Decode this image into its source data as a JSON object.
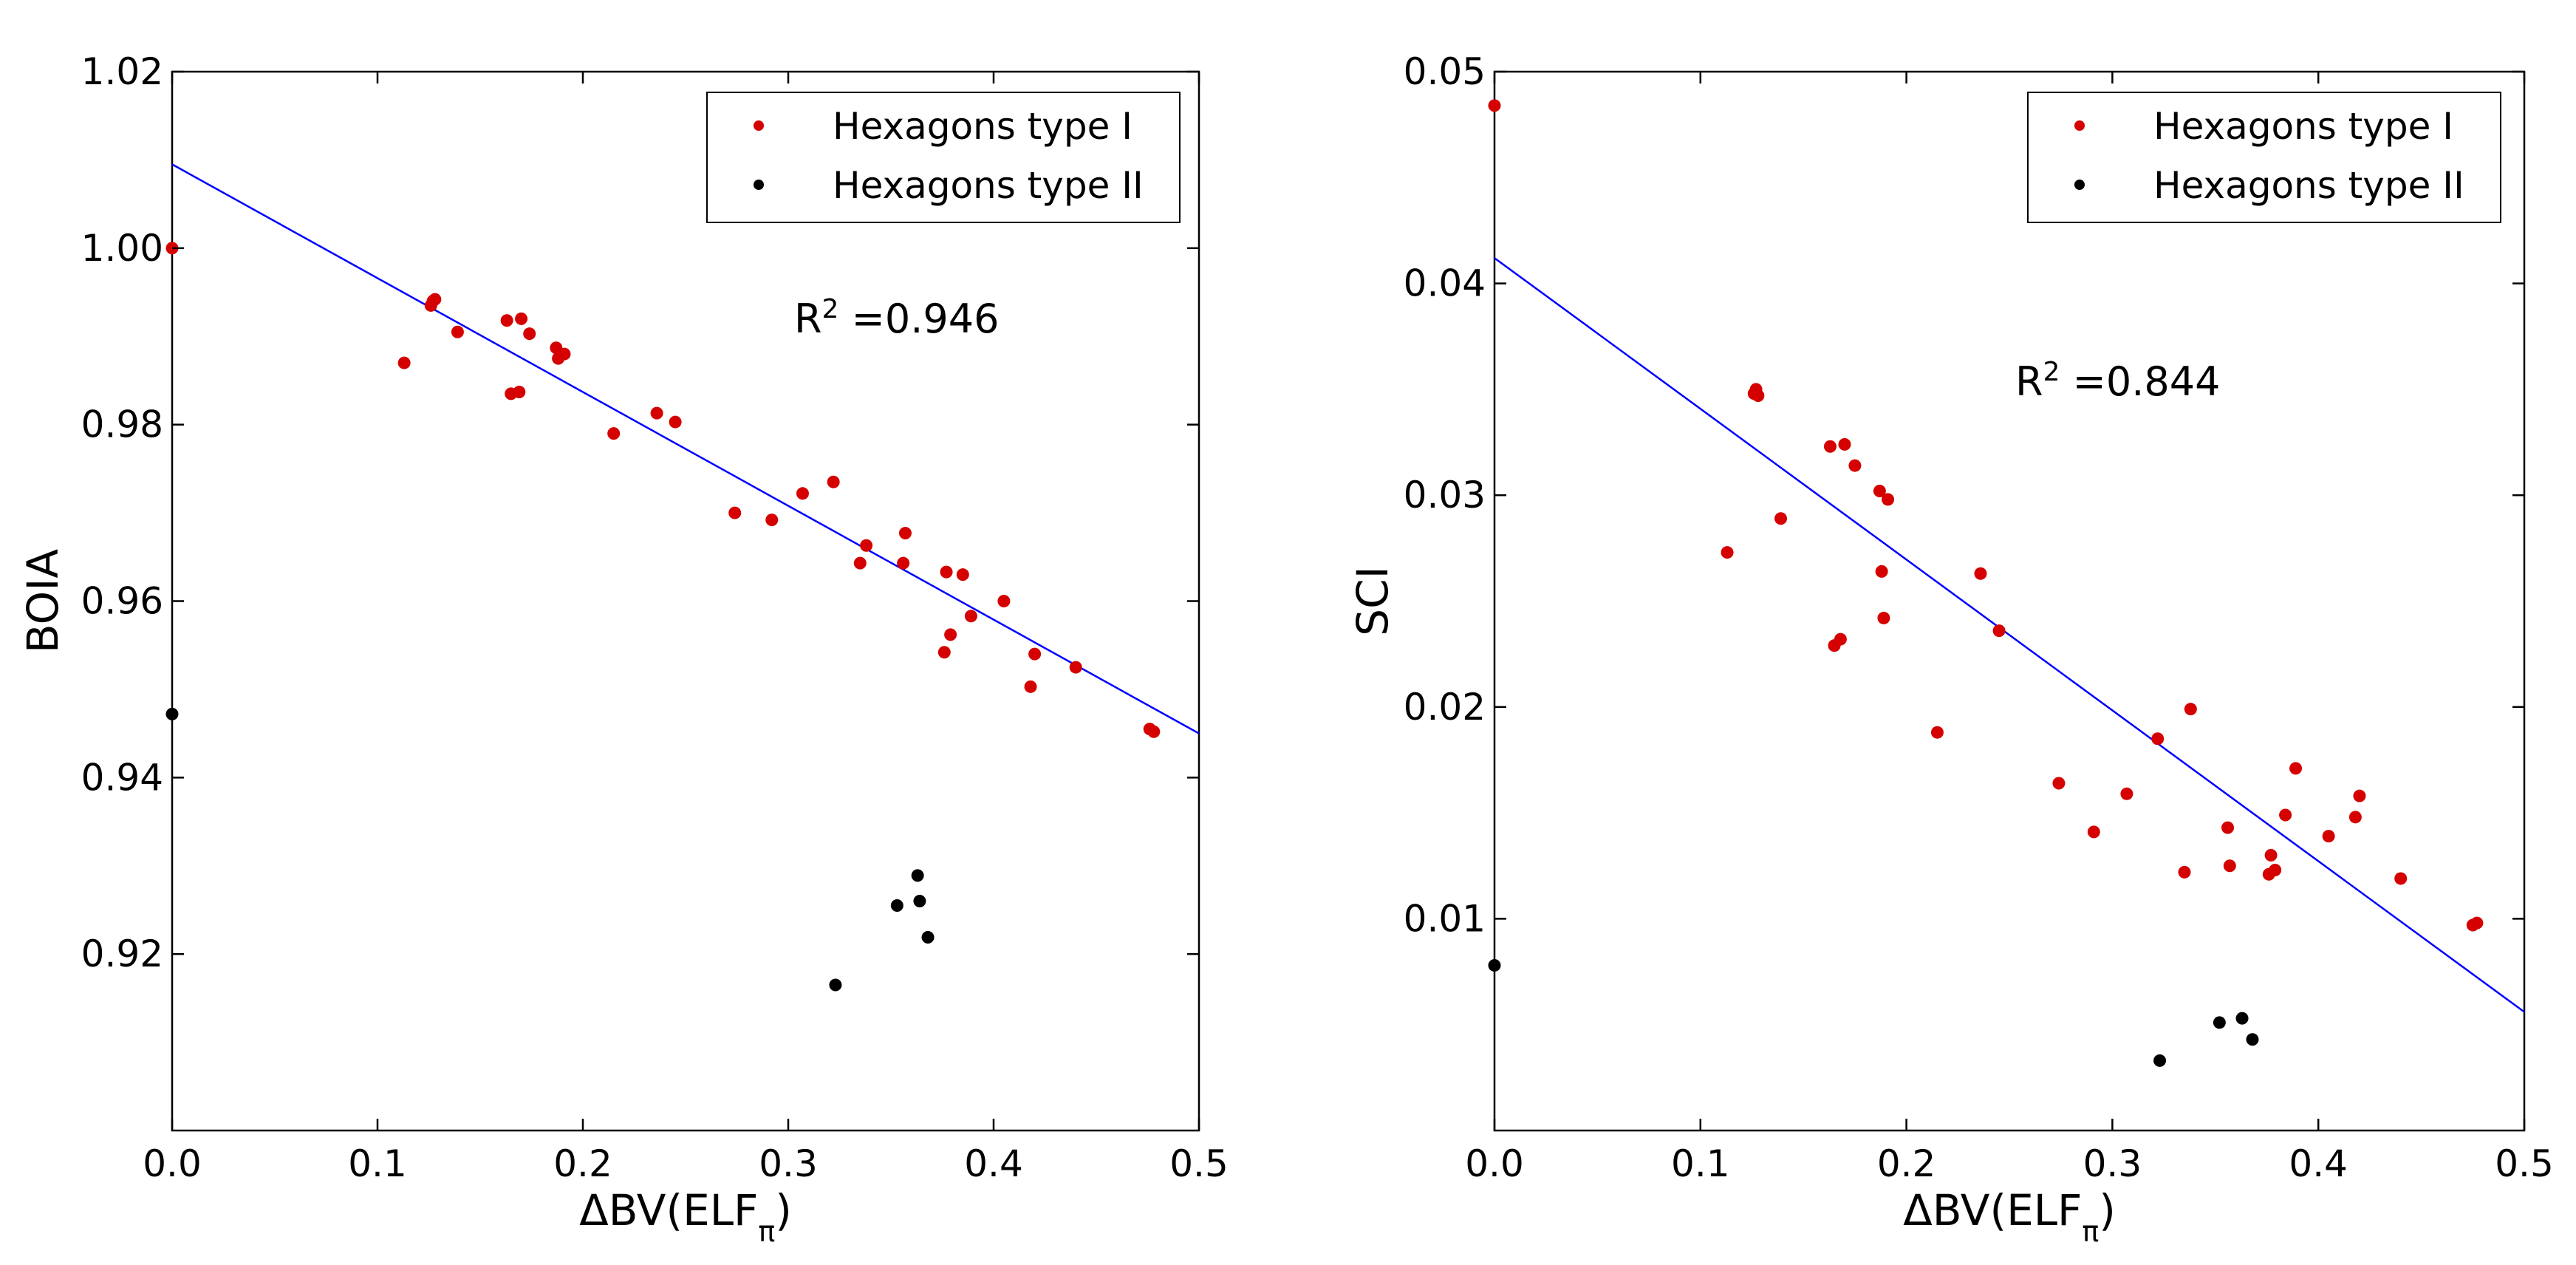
{
  "chart_data": [
    {
      "type": "scatter",
      "xlabel": "ΔBV(ELF",
      "xlabel_sub": "π",
      "xlabel_close": ")",
      "ylabel": "BOIA",
      "xlim": [
        0.0,
        0.5
      ],
      "ylim": [
        0.9,
        1.02
      ],
      "xticks": [
        0.0,
        0.1,
        0.2,
        0.3,
        0.4,
        0.5
      ],
      "xtick_labels": [
        "0.0",
        "0.1",
        "0.2",
        "0.3",
        "0.4",
        "0.5"
      ],
      "yticks": [
        0.92,
        0.94,
        0.96,
        0.98,
        1.0,
        1.02
      ],
      "ytick_labels": [
        "0.92",
        "0.94",
        "0.96",
        "0.98",
        "1.00",
        "1.02"
      ],
      "grid": false,
      "legend_position": "top-right",
      "annotation": {
        "prefix": "R",
        "sup": "2",
        "value": " =0.946"
      },
      "fit_line": {
        "intercept": 1.0095,
        "slope": -0.129,
        "color": "#0000ff"
      },
      "series": [
        {
          "name": "Hexagons type I",
          "color": "#d50000",
          "points": [
            [
              0.0,
              1.0
            ],
            [
              0.113,
              0.987
            ],
            [
              0.126,
              0.9935
            ],
            [
              0.127,
              0.994
            ],
            [
              0.128,
              0.9942
            ],
            [
              0.139,
              0.9905
            ],
            [
              0.163,
              0.9918
            ],
            [
              0.165,
              0.9835
            ],
            [
              0.169,
              0.9837
            ],
            [
              0.17,
              0.992
            ],
            [
              0.174,
              0.9903
            ],
            [
              0.187,
              0.9887
            ],
            [
              0.188,
              0.9875
            ],
            [
              0.191,
              0.988
            ],
            [
              0.215,
              0.979
            ],
            [
              0.236,
              0.9813
            ],
            [
              0.245,
              0.9803
            ],
            [
              0.274,
              0.97
            ],
            [
              0.292,
              0.9692
            ],
            [
              0.307,
              0.9722
            ],
            [
              0.322,
              0.9735
            ],
            [
              0.335,
              0.9643
            ],
            [
              0.338,
              0.9663
            ],
            [
              0.356,
              0.9643
            ],
            [
              0.357,
              0.9677
            ],
            [
              0.376,
              0.9542
            ],
            [
              0.377,
              0.9633
            ],
            [
              0.379,
              0.9562
            ],
            [
              0.385,
              0.963
            ],
            [
              0.389,
              0.9583
            ],
            [
              0.405,
              0.96
            ],
            [
              0.418,
              0.9503
            ],
            [
              0.42,
              0.954
            ],
            [
              0.44,
              0.9525
            ],
            [
              0.476,
              0.9455
            ],
            [
              0.478,
              0.9452
            ]
          ]
        },
        {
          "name": "Hexagons type II",
          "color": "#000000",
          "points": [
            [
              0.0,
              0.9472
            ],
            [
              0.323,
              0.9165
            ],
            [
              0.353,
              0.9255
            ],
            [
              0.363,
              0.9289
            ],
            [
              0.364,
              0.926
            ],
            [
              0.368,
              0.9219
            ]
          ]
        }
      ]
    },
    {
      "type": "scatter",
      "xlabel": "ΔBV(ELF",
      "xlabel_sub": "π",
      "xlabel_close": ")",
      "ylabel": "SCI",
      "xlim": [
        0.0,
        0.5
      ],
      "ylim": [
        0.0,
        0.05
      ],
      "xticks": [
        0.0,
        0.1,
        0.2,
        0.3,
        0.4,
        0.5
      ],
      "xtick_labels": [
        "0.0",
        "0.1",
        "0.2",
        "0.3",
        "0.4",
        "0.5"
      ],
      "yticks": [
        0.01,
        0.02,
        0.03,
        0.04,
        0.05
      ],
      "ytick_labels": [
        "0.01",
        "0.02",
        "0.03",
        "0.04",
        "0.05"
      ],
      "grid": false,
      "legend_position": "top-right",
      "annotation": {
        "prefix": "R",
        "sup": "2",
        "value": " =0.844"
      },
      "fit_line": {
        "intercept": 0.0412,
        "slope": -0.0712,
        "color": "#0000ff"
      },
      "series": [
        {
          "name": "Hexagons type I",
          "color": "#d50000",
          "points": [
            [
              0.0,
              0.0484
            ],
            [
              0.113,
              0.0273
            ],
            [
              0.126,
              0.0348
            ],
            [
              0.127,
              0.035
            ],
            [
              0.128,
              0.0347
            ],
            [
              0.139,
              0.0289
            ],
            [
              0.163,
              0.0323
            ],
            [
              0.165,
              0.0229
            ],
            [
              0.168,
              0.0232
            ],
            [
              0.17,
              0.0324
            ],
            [
              0.175,
              0.0314
            ],
            [
              0.187,
              0.0302
            ],
            [
              0.188,
              0.0264
            ],
            [
              0.189,
              0.0242
            ],
            [
              0.191,
              0.0298
            ],
            [
              0.215,
              0.0188
            ],
            [
              0.236,
              0.0263
            ],
            [
              0.245,
              0.0236
            ],
            [
              0.274,
              0.0164
            ],
            [
              0.291,
              0.0141
            ],
            [
              0.307,
              0.0159
            ],
            [
              0.322,
              0.0185
            ],
            [
              0.335,
              0.0122
            ],
            [
              0.338,
              0.0199
            ],
            [
              0.356,
              0.0143
            ],
            [
              0.357,
              0.0125
            ],
            [
              0.376,
              0.0121
            ],
            [
              0.377,
              0.013
            ],
            [
              0.379,
              0.0123
            ],
            [
              0.384,
              0.0149
            ],
            [
              0.389,
              0.0171
            ],
            [
              0.405,
              0.0139
            ],
            [
              0.418,
              0.0148
            ],
            [
              0.42,
              0.0158
            ],
            [
              0.44,
              0.0119
            ],
            [
              0.475,
              0.0097
            ],
            [
              0.477,
              0.0098
            ]
          ]
        },
        {
          "name": "Hexagons type II",
          "color": "#000000",
          "points": [
            [
              0.0,
              0.0078
            ],
            [
              0.323,
              0.0033
            ],
            [
              0.352,
              0.0051
            ],
            [
              0.363,
              0.0053
            ],
            [
              0.368,
              0.0043
            ]
          ]
        }
      ]
    }
  ]
}
